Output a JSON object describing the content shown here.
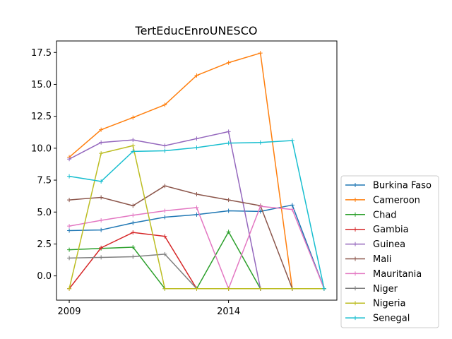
{
  "chart_data": {
    "type": "line",
    "title": "TertEducEnroUNESCO",
    "xlabel": "",
    "ylabel": "",
    "x": [
      2009,
      2010,
      2011,
      2012,
      2013,
      2014,
      2015,
      2016,
      2017
    ],
    "xticks": [
      2009,
      2014
    ],
    "xtick_labels": [
      "2009",
      "2014"
    ],
    "xlim": [
      2008.6,
      2017.4
    ],
    "ylim": [
      -1.9,
      18.4
    ],
    "yticks": [
      0.0,
      2.5,
      5.0,
      7.5,
      10.0,
      12.5,
      15.0,
      17.5
    ],
    "ytick_labels": [
      "0.0",
      "2.5",
      "5.0",
      "7.5",
      "10.0",
      "12.5",
      "15.0",
      "17.5"
    ],
    "grid": false,
    "legend_position": "outside-right-bottom",
    "series": [
      {
        "name": "Burkina Faso",
        "color": "#1f77b4",
        "values": [
          3.55,
          3.6,
          4.15,
          4.6,
          4.8,
          5.1,
          5.05,
          5.55,
          -1.0
        ]
      },
      {
        "name": "Cameroon",
        "color": "#ff7f0e",
        "values": [
          9.3,
          11.45,
          12.4,
          13.4,
          15.7,
          16.7,
          17.45,
          -1.0,
          -1.0
        ]
      },
      {
        "name": "Chad",
        "color": "#2ca02c",
        "values": [
          2.05,
          2.15,
          2.25,
          -1.0,
          -1.0,
          3.45,
          -1.0,
          -1.0,
          -1.0
        ]
      },
      {
        "name": "Gambia",
        "color": "#d62728",
        "values": [
          -1.0,
          2.2,
          3.4,
          3.1,
          -1.0,
          -1.0,
          -1.0,
          -1.0,
          -1.0
        ]
      },
      {
        "name": "Guinea",
        "color": "#9467bd",
        "values": [
          9.15,
          10.45,
          10.65,
          10.2,
          10.75,
          11.3,
          -1.0,
          -1.0,
          -1.0
        ]
      },
      {
        "name": "Mali",
        "color": "#8c564b",
        "values": [
          5.95,
          6.15,
          5.5,
          7.05,
          6.4,
          5.95,
          5.5,
          -1.0,
          -1.0
        ]
      },
      {
        "name": "Mauritania",
        "color": "#e377c2",
        "values": [
          3.9,
          4.35,
          4.75,
          5.1,
          5.35,
          -1.0,
          5.45,
          5.2,
          -1.0
        ]
      },
      {
        "name": "Niger",
        "color": "#7f7f7f",
        "values": [
          1.4,
          1.45,
          1.5,
          1.7,
          -1.0,
          -1.0,
          -1.0,
          -1.0,
          -1.0
        ]
      },
      {
        "name": "Nigeria",
        "color": "#bcbd22",
        "values": [
          -1.0,
          9.6,
          10.2,
          -1.0,
          -1.0,
          -1.0,
          -1.0,
          -1.0,
          -1.0
        ]
      },
      {
        "name": "Senegal",
        "color": "#17becf",
        "values": [
          7.8,
          7.4,
          9.75,
          9.8,
          10.05,
          10.4,
          10.45,
          10.6,
          -1.0
        ]
      }
    ]
  }
}
